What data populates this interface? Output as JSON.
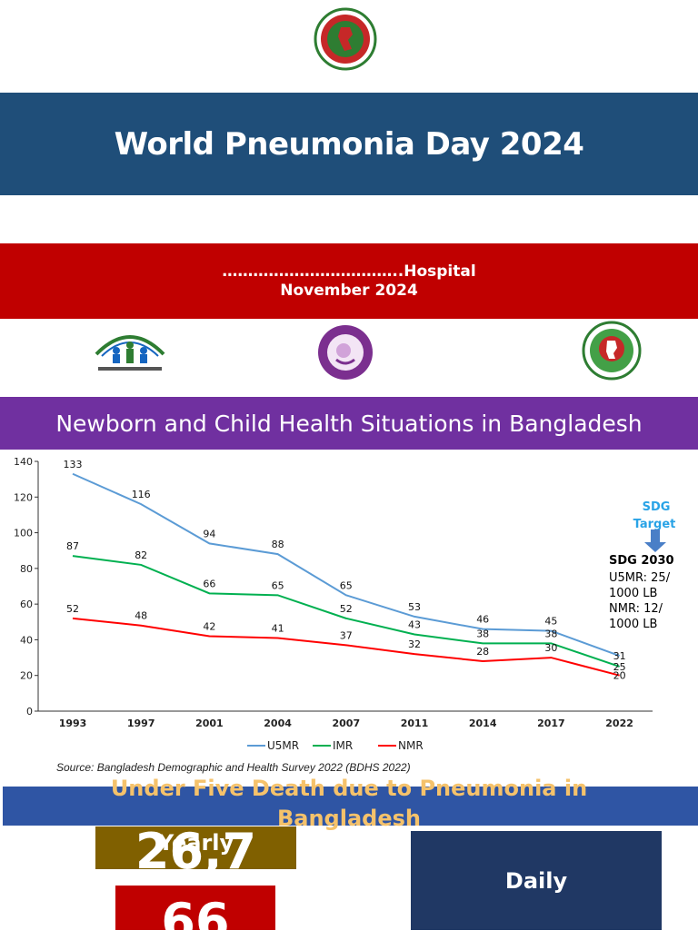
{
  "header": {
    "title": "World Pneumonia Day 2024"
  },
  "event": {
    "hospital_line": "……………………………..Hospital",
    "date_line": "November 2024"
  },
  "section": {
    "title": "Newborn and Child Health Situations in Bangladesh"
  },
  "colors": {
    "title_band": "#1f4e79",
    "hospital_band": "#c00000",
    "section_band": "#7030a0",
    "u5mr": "#5b9bd5",
    "imr": "#00b050",
    "nmr": "#ff0000"
  },
  "chart_data": {
    "type": "line",
    "categories": [
      "1993",
      "1997",
      "2001",
      "2004",
      "2007",
      "2011",
      "2014",
      "2017",
      "2022"
    ],
    "series": [
      {
        "name": "U5MR",
        "values": [
          133,
          116,
          94,
          88,
          65,
          53,
          46,
          45,
          31
        ]
      },
      {
        "name": "IMR",
        "values": [
          87,
          82,
          66,
          65,
          52,
          43,
          38,
          38,
          25
        ]
      },
      {
        "name": "NMR",
        "values": [
          52,
          48,
          42,
          41,
          37,
          32,
          28,
          30,
          20
        ]
      }
    ],
    "ylim": [
      0,
      140
    ],
    "yticks": [
      0,
      20,
      40,
      60,
      80,
      100,
      120,
      140
    ],
    "legend_position": "bottom",
    "grid": false,
    "annotations": {
      "sdg_target": "SDG Target",
      "sdg_title": "SDG 2030",
      "sdg_lines": [
        "U5MR: 25/",
        "1000 LB",
        "NMR: 12/",
        "1000 LB"
      ]
    }
  },
  "source": "Source: Bangladesh Demographic and Health Survey 2022 (BDHS 2022)",
  "pneumonia": {
    "title": "Under Five Death due to Pneumonia in Bangladesh",
    "yearly_label": "Yearly",
    "yearly_value": "26,7",
    "second_value": "66",
    "daily_label": "Daily"
  },
  "logos": {
    "emblem": "government-of-bangladesh-emblem-icon",
    "left": "community-health-logo-icon",
    "center": "national-newborn-health-program-logo-icon",
    "right": "dghs-logo-icon"
  }
}
